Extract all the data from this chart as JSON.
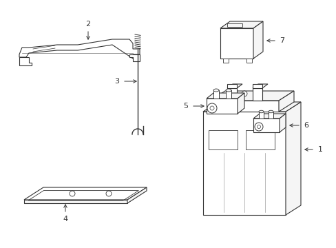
{
  "background_color": "#ffffff",
  "line_color": "#333333",
  "figsize": [
    4.89,
    3.6
  ],
  "dpi": 100,
  "lw": 0.8
}
